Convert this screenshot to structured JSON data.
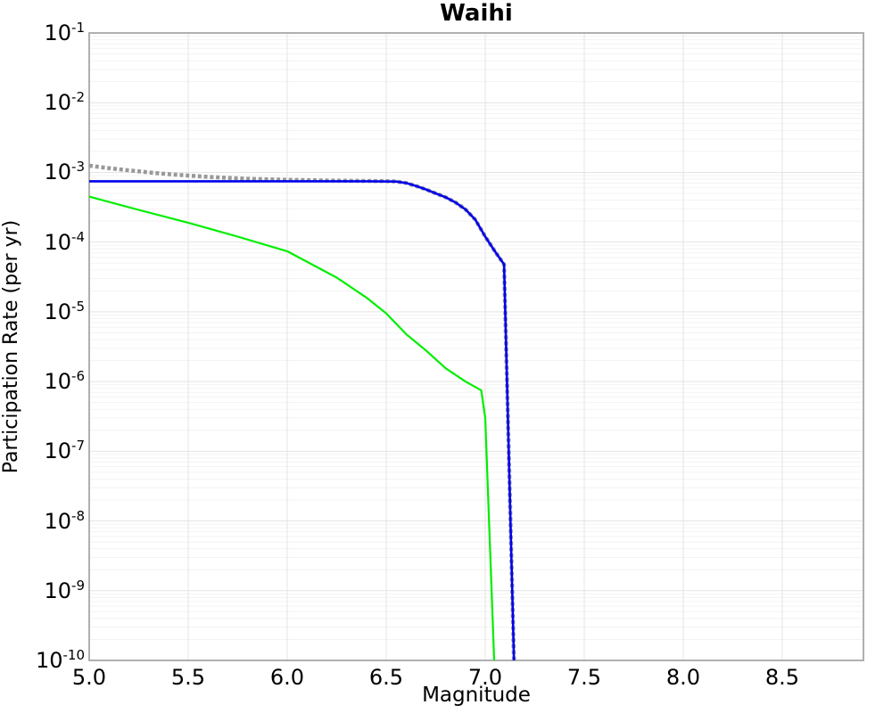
{
  "title": "Waihi",
  "chart_data": {
    "type": "line",
    "title": "Waihi",
    "xlabel": "Magnitude",
    "ylabel": "Participation Rate (per yr)",
    "xlim": [
      5.0,
      8.91
    ],
    "ylim_log10": [
      -10,
      -1
    ],
    "x_ticks": [
      5.0,
      5.5,
      6.0,
      6.5,
      7.0,
      7.5,
      8.0,
      8.5
    ],
    "x_tick_labels": [
      "5.0",
      "5.5",
      "6.0",
      "6.5",
      "7.0",
      "7.5",
      "8.0",
      "8.5"
    ],
    "y_tick_exponents": [
      "-1",
      "-2",
      "-3",
      "-4",
      "-5",
      "-6",
      "-7",
      "-8",
      "-9",
      "-10"
    ],
    "y_tick_base": "10",
    "grid": {
      "major": true,
      "minor_horizontal": true,
      "legend": "none"
    },
    "series": [
      {
        "name": "dotted-gray-curve",
        "color": "#999999",
        "style": "dotted",
        "width": 4.5,
        "points": [
          [
            5.0,
            0.00125
          ],
          [
            5.1,
            0.00115
          ],
          [
            5.2,
            0.00107
          ],
          [
            5.3,
            0.001
          ],
          [
            5.4,
            0.000945
          ],
          [
            5.5,
            0.0009
          ],
          [
            5.6,
            0.000865
          ],
          [
            5.7,
            0.000835
          ],
          [
            5.8,
            0.00081
          ],
          [
            5.9,
            0.000795
          ],
          [
            6.0,
            0.000785
          ],
          [
            6.1,
            0.000775
          ],
          [
            6.2,
            0.000765
          ],
          [
            6.3,
            0.00076
          ],
          [
            6.4,
            0.000755
          ],
          [
            6.5,
            0.00075
          ],
          [
            6.55,
            0.00074
          ],
          [
            6.6,
            0.000705
          ],
          [
            6.65,
            0.00064
          ],
          [
            6.7,
            0.00057
          ],
          [
            6.75,
            0.0005
          ],
          [
            6.8,
            0.00044
          ],
          [
            6.85,
            0.00037
          ],
          [
            6.9,
            0.000295
          ],
          [
            6.95,
            0.00021
          ],
          [
            7.0,
            0.00012
          ],
          [
            7.05,
            7.3e-05
          ],
          [
            7.095,
            4.8e-05
          ],
          [
            7.145,
            1e-10
          ]
        ]
      },
      {
        "name": "solid-blue-curve",
        "color": "#0000ee",
        "style": "solid",
        "width": 2.6,
        "points": [
          [
            5.0,
            0.000745
          ],
          [
            5.5,
            0.000745
          ],
          [
            6.0,
            0.000745
          ],
          [
            6.4,
            0.000745
          ],
          [
            6.55,
            0.00074
          ],
          [
            6.6,
            0.000705
          ],
          [
            6.65,
            0.00064
          ],
          [
            6.7,
            0.00057
          ],
          [
            6.75,
            0.0005
          ],
          [
            6.8,
            0.00044
          ],
          [
            6.85,
            0.00037
          ],
          [
            6.9,
            0.000295
          ],
          [
            6.95,
            0.00021
          ],
          [
            7.0,
            0.00012
          ],
          [
            7.05,
            7.3e-05
          ],
          [
            7.095,
            4.8e-05
          ],
          [
            7.145,
            1e-10
          ]
        ]
      },
      {
        "name": "solid-green-curve",
        "color": "#00ee00",
        "style": "solid",
        "width": 2.2,
        "points": [
          [
            5.0,
            0.00045
          ],
          [
            5.25,
            0.00029
          ],
          [
            5.5,
            0.00019
          ],
          [
            5.75,
            0.00012
          ],
          [
            6.0,
            7.4e-05
          ],
          [
            6.25,
            3.1e-05
          ],
          [
            6.4,
            1.6e-05
          ],
          [
            6.5,
            9.5e-06
          ],
          [
            6.6,
            4.8e-06
          ],
          [
            6.7,
            2.8e-06
          ],
          [
            6.8,
            1.55e-06
          ],
          [
            6.9,
            1e-06
          ],
          [
            6.98,
            7.5e-07
          ],
          [
            7.0,
            3e-07
          ],
          [
            7.045,
            1e-10
          ]
        ]
      }
    ]
  },
  "colors": {
    "background": "#ffffff",
    "border": "#a8a8a8",
    "grid_major": "#e4e4e4",
    "grid_minor": "#f3f3f3"
  }
}
